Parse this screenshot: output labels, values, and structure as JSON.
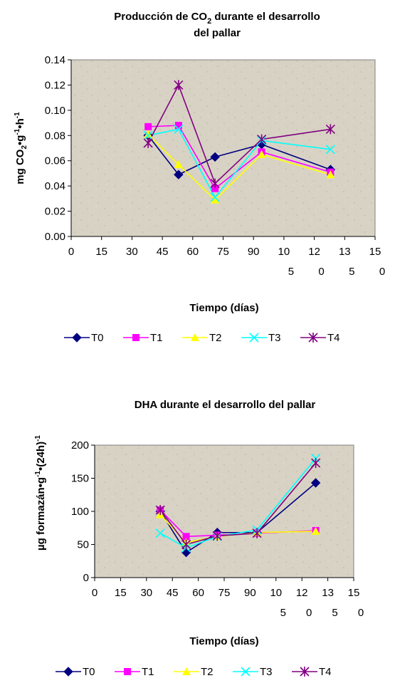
{
  "colors": {
    "T0": "#000080",
    "T1": "#ff00ff",
    "T2": "#ffff00",
    "T3": "#00ffff",
    "T4": "#800080",
    "plot_bg": "#d8d2c4"
  },
  "chart_data": [
    {
      "type": "line",
      "title_line1_pre": "Producción de CO",
      "title_line1_sub": "2",
      "title_line1_post": " durante el desarrollo",
      "title_line2": "del pallar",
      "xlabel": "Tiempo (días)",
      "ylabel": "mg CO2•g-1•h-1",
      "xlim": [
        0,
        150
      ],
      "ylim": [
        0,
        0.14
      ],
      "x_ticks": [
        {
          "line1": "0",
          "line2": ""
        },
        {
          "line1": "15",
          "line2": ""
        },
        {
          "line1": "30",
          "line2": ""
        },
        {
          "line1": "45",
          "line2": ""
        },
        {
          "line1": "60",
          "line2": ""
        },
        {
          "line1": "75",
          "line2": ""
        },
        {
          "line1": "90",
          "line2": ""
        },
        {
          "line1": "10",
          "line2": "5"
        },
        {
          "line1": "12",
          "line2": "0"
        },
        {
          "line1": "13",
          "line2": "5"
        },
        {
          "line1": "15",
          "line2": "0"
        }
      ],
      "y_ticks": [
        "0.00",
        "0.02",
        "0.04",
        "0.06",
        "0.08",
        "0.10",
        "0.12",
        "0.14"
      ],
      "x": [
        38,
        53,
        71,
        94,
        128
      ],
      "series": [
        {
          "name": "T0",
          "marker": "diamond",
          "values": [
            0.08,
            0.049,
            0.063,
            0.073,
            0.053
          ]
        },
        {
          "name": "T1",
          "marker": "square",
          "values": [
            0.087,
            0.088,
            0.038,
            0.067,
            0.051
          ]
        },
        {
          "name": "T2",
          "marker": "triangle",
          "values": [
            0.081,
            0.057,
            0.029,
            0.065,
            0.049
          ]
        },
        {
          "name": "T3",
          "marker": "x",
          "values": [
            0.08,
            0.085,
            0.031,
            0.076,
            0.069
          ]
        },
        {
          "name": "T4",
          "marker": "star",
          "values": [
            0.074,
            0.12,
            0.042,
            0.077,
            0.085
          ]
        }
      ],
      "legend_position": "bottom"
    },
    {
      "type": "line",
      "title": "DHA durante el desarrollo del pallar",
      "xlabel": "Tiempo (días)",
      "ylabel": "µg formazán•g-1•(24h)-1",
      "xlim": [
        0,
        150
      ],
      "ylim": [
        0,
        200
      ],
      "x_ticks": [
        {
          "line1": "0",
          "line2": ""
        },
        {
          "line1": "15",
          "line2": ""
        },
        {
          "line1": "30",
          "line2": ""
        },
        {
          "line1": "45",
          "line2": ""
        },
        {
          "line1": "60",
          "line2": ""
        },
        {
          "line1": "75",
          "line2": ""
        },
        {
          "line1": "90",
          "line2": ""
        },
        {
          "line1": "10",
          "line2": "5"
        },
        {
          "line1": "12",
          "line2": "0"
        },
        {
          "line1": "13",
          "line2": "5"
        },
        {
          "line1": "15",
          "line2": "0"
        }
      ],
      "y_ticks": [
        "0",
        "50",
        "100",
        "150",
        "200"
      ],
      "x": [
        38,
        53,
        71,
        94,
        128
      ],
      "series": [
        {
          "name": "T0",
          "marker": "diamond",
          "values": [
            100,
            38,
            68,
            68,
            143
          ]
        },
        {
          "name": "T1",
          "marker": "square",
          "values": [
            102,
            62,
            64,
            67,
            71
          ]
        },
        {
          "name": "T2",
          "marker": "triangle",
          "values": [
            95,
            53,
            62,
            68,
            70
          ]
        },
        {
          "name": "T3",
          "marker": "x",
          "values": [
            67,
            45,
            62,
            72,
            180
          ]
        },
        {
          "name": "T4",
          "marker": "star",
          "values": [
            102,
            50,
            63,
            67,
            173
          ]
        }
      ],
      "legend_position": "bottom"
    }
  ]
}
